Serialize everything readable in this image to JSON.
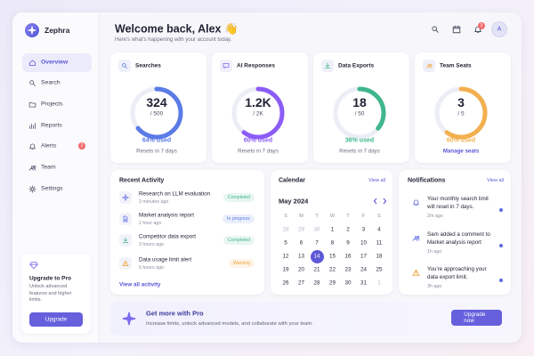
{
  "sidebar": {
    "brand": "Zephra",
    "nav": [
      {
        "label": "Overview"
      },
      {
        "label": "Search"
      },
      {
        "label": "Projects"
      },
      {
        "label": "Reports"
      },
      {
        "label": "Alerts",
        "badge": "2"
      },
      {
        "label": "Team"
      },
      {
        "label": "Settings"
      }
    ],
    "active": 0,
    "promo": {
      "title": "Upgrade to Pro",
      "text": "Unlock advanced features and higher limits.",
      "button": "Upgrade"
    }
  },
  "header": {
    "title": "Welcome back, Alex 👋",
    "subtitle": "Here's what's happening with your account today.",
    "notification_count": "3",
    "avatar": "A"
  },
  "stats": [
    {
      "title": "Searches",
      "value": "324",
      "limit": "/ 500",
      "percent": 64,
      "percent_label": "64% used",
      "footer": "Resets in 7 days",
      "color": "#5b7be6"
    },
    {
      "title": "AI Responses",
      "value": "1.2K",
      "limit": "/ 2K",
      "percent": 60,
      "percent_label": "60% used",
      "footer": "Resets in 7 days",
      "color": "#8b5cf6"
    },
    {
      "title": "Data Exports",
      "value": "18",
      "limit": "/ 50",
      "percent": 36,
      "percent_label": "36% used",
      "footer": "Resets in 7 days",
      "color": "#3fb68b"
    },
    {
      "title": "Team Seats",
      "value": "3",
      "limit": "/ 5",
      "percent": 60,
      "percent_label": "60% used",
      "footer": "Manage seats",
      "color": "#f2b04e"
    }
  ],
  "activity": {
    "title": "Recent Activity",
    "items": [
      {
        "title": "Research on LLM evaluation",
        "time": "2 minutes ago",
        "status": "Completed",
        "color": "#3fb68b"
      },
      {
        "title": "Market analysis report",
        "time": "1 hour ago",
        "status": "In progress",
        "color": "#5b7be6"
      },
      {
        "title": "Competitor data export",
        "time": "3 hours ago",
        "status": "Completed",
        "color": "#3fb68b"
      },
      {
        "title": "Data usage limit alert",
        "time": "5 hours ago",
        "status": "Warning",
        "color": "#f0a23a"
      }
    ],
    "link": "View all activity"
  },
  "calendar": {
    "title": "Calendar",
    "link": "View all",
    "month": "May 2024",
    "weekdays": [
      "S",
      "M",
      "T",
      "W",
      "T",
      "F",
      "S"
    ],
    "weeks": [
      [
        "28",
        "29",
        "30",
        "1",
        "2",
        "3",
        "4"
      ],
      [
        "5",
        "6",
        "7",
        "8",
        "9",
        "10",
        "11"
      ],
      [
        "12",
        "13",
        "14",
        "15",
        "16",
        "17",
        "18"
      ],
      [
        "19",
        "20",
        "21",
        "22",
        "23",
        "24",
        "25"
      ],
      [
        "26",
        "27",
        "28",
        "29",
        "30",
        "31",
        "1"
      ]
    ],
    "selected": {
      "week": 2,
      "day": 2
    }
  },
  "notifications": {
    "title": "Notifications",
    "link": "View all",
    "items": [
      {
        "text": "Your monthly search limit will reset in 7 days.",
        "time": "2m ago"
      },
      {
        "text": "Sam added a comment to Market analysis report",
        "time": "1h ago"
      },
      {
        "text": "You're approaching your data export limit.",
        "time": "3h ago"
      }
    ]
  },
  "banner": {
    "title": "Get more with Pro",
    "text": "Increase limits, unlock advanced models, and collaborate with your team.",
    "button": "Upgrade now"
  }
}
